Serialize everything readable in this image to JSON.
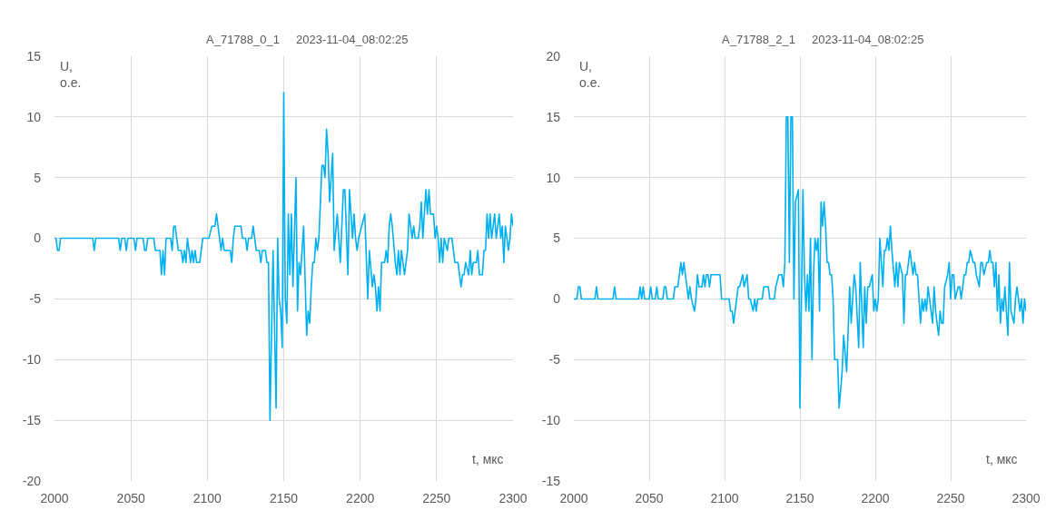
{
  "chart_data": [
    {
      "type": "line",
      "title": "A_71788_0_1     2023-11-04_08:02:25",
      "xlabel": "t, мкс",
      "ylabel": "U,\nо.е.",
      "grid": true,
      "line_style": "solid",
      "xlim": [
        2000,
        2300
      ],
      "xticks": [
        2000,
        2050,
        2100,
        2150,
        2200,
        2250,
        2300
      ],
      "ylim": [
        -20,
        15
      ],
      "yticks": [
        -20,
        -15,
        -10,
        -5,
        0,
        5,
        10,
        15
      ],
      "x": [
        2000,
        2001,
        2002,
        2003,
        2004,
        2025,
        2026,
        2027,
        2042,
        2043,
        2044,
        2046,
        2047,
        2048,
        2052,
        2053,
        2054,
        2058,
        2059,
        2060,
        2061,
        2065,
        2066,
        2069,
        2070,
        2071,
        2072,
        2073,
        2076,
        2077,
        2078,
        2079,
        2080,
        2081,
        2083,
        2084,
        2085,
        2086,
        2087,
        2088,
        2089,
        2090,
        2091,
        2092,
        2093,
        2095,
        2096,
        2097,
        2101,
        2103,
        2105,
        2106,
        2107,
        2108,
        2109,
        2110,
        2111,
        2115,
        2116,
        2117,
        2118,
        2122,
        2123,
        2125,
        2126,
        2127,
        2129,
        2130,
        2131,
        2132,
        2134,
        2135,
        2136,
        2138,
        2139,
        2140,
        2141,
        2143,
        2145,
        2146,
        2147,
        2148,
        2149,
        2150,
        2151,
        2152,
        2153,
        2154,
        2155,
        2156,
        2158,
        2159,
        2160,
        2161,
        2163,
        2165,
        2166,
        2167,
        2168,
        2169,
        2170,
        2171,
        2172,
        2173,
        2175,
        2176,
        2177,
        2178,
        2179,
        2180,
        2182,
        2183,
        2185,
        2186,
        2187,
        2189,
        2190,
        2192,
        2193,
        2195,
        2196,
        2197,
        2198,
        2199,
        2201,
        2203,
        2205,
        2206,
        2208,
        2209,
        2210,
        2211,
        2212,
        2213,
        2214,
        2216,
        2217,
        2218,
        2219,
        2220,
        2221,
        2223,
        2224,
        2225,
        2226,
        2227,
        2229,
        2230,
        2231,
        2232,
        2234,
        2235,
        2236,
        2238,
        2239,
        2240,
        2241,
        2243,
        2244,
        2245,
        2246,
        2248,
        2249,
        2250,
        2251,
        2252,
        2253,
        2254,
        2255,
        2257,
        2258,
        2260,
        2261,
        2262,
        2264,
        2266,
        2267,
        2268,
        2269,
        2271,
        2272,
        2273,
        2274,
        2276,
        2277,
        2278,
        2280,
        2281,
        2282,
        2283,
        2284,
        2285,
        2286,
        2288,
        2289,
        2290,
        2291,
        2292,
        2293,
        2294,
        2295,
        2296,
        2297,
        2298,
        2299,
        2300
      ],
      "series": [
        {
          "color": "#00b0f0",
          "values": [
            0,
            0,
            -1,
            -1,
            0,
            0,
            -1,
            0,
            0,
            -1,
            0,
            0,
            -1,
            0,
            0,
            -1,
            0,
            0,
            -1,
            -1,
            0,
            0,
            -1,
            -1,
            -3,
            -1,
            -3,
            0,
            0,
            -1,
            1,
            1,
            0,
            -1,
            -1,
            -2,
            -1,
            -2,
            0,
            -1,
            -2,
            -1,
            -2,
            -1,
            -2,
            -2,
            -1,
            0,
            0,
            1,
            1,
            2,
            1,
            0,
            -1,
            0,
            -1,
            -1,
            -2,
            0,
            1,
            1,
            0,
            0,
            -1,
            0,
            0,
            1,
            0,
            -1,
            -1,
            -2,
            -1,
            -1,
            -2,
            -2,
            -15,
            -1,
            -14,
            0,
            -5,
            -6,
            -9,
            12,
            -5,
            -7,
            2,
            -3,
            2,
            -4,
            5,
            -6,
            -2,
            -3,
            1,
            -8,
            -6,
            -7,
            -4,
            -2,
            -2,
            0,
            -1,
            0,
            6,
            6,
            5,
            9,
            7,
            3,
            7,
            -1,
            2,
            0,
            -2,
            4,
            4,
            -3,
            4,
            0,
            2,
            0,
            -1,
            0,
            1,
            2,
            -5,
            -1,
            -4,
            -3,
            -4,
            -6,
            -4,
            -6,
            -2,
            -2,
            -1,
            -2,
            1,
            2,
            1,
            -2,
            -3,
            -1,
            -3,
            -1,
            -3,
            -2,
            -1,
            2,
            0,
            1,
            0,
            0,
            1,
            3,
            0,
            4,
            2,
            4,
            2,
            2,
            0,
            1,
            0,
            -2,
            0,
            -2,
            0,
            -1,
            0,
            0,
            -1,
            -2,
            -2,
            -4,
            -3,
            -3,
            -2,
            -3,
            -1,
            -3,
            -2,
            -2,
            -1,
            -3,
            -3,
            -1,
            -1,
            2,
            0,
            2,
            0,
            2,
            0,
            1,
            2,
            0,
            1,
            -2,
            1,
            0,
            -1,
            0,
            2,
            1
          ]
        }
      ]
    },
    {
      "type": "line",
      "title": "A_71788_2_1     2023-11-04_08:02:25",
      "xlabel": "t, мкс",
      "ylabel": "U,\nо.е.",
      "grid": true,
      "line_style": "solid",
      "xlim": [
        2000,
        2300
      ],
      "xticks": [
        2000,
        2050,
        2100,
        2150,
        2200,
        2250,
        2300
      ],
      "ylim": [
        -15,
        20
      ],
      "yticks": [
        -15,
        -10,
        -5,
        0,
        5,
        10,
        15,
        20
      ],
      "x": [
        2000,
        2002,
        2003,
        2004,
        2005,
        2014,
        2015,
        2016,
        2026,
        2027,
        2028,
        2043,
        2044,
        2045,
        2046,
        2047,
        2050,
        2051,
        2052,
        2054,
        2055,
        2056,
        2059,
        2060,
        2061,
        2062,
        2066,
        2067,
        2069,
        2071,
        2072,
        2073,
        2075,
        2076,
        2077,
        2078,
        2080,
        2081,
        2082,
        2083,
        2085,
        2086,
        2087,
        2088,
        2089,
        2090,
        2091,
        2097,
        2098,
        2103,
        2104,
        2105,
        2106,
        2108,
        2109,
        2110,
        2112,
        2113,
        2115,
        2116,
        2117,
        2119,
        2120,
        2121,
        2122,
        2125,
        2126,
        2129,
        2130,
        2133,
        2134,
        2136,
        2138,
        2139,
        2140,
        2141,
        2142,
        2143,
        2144,
        2145,
        2146,
        2147,
        2149,
        2150,
        2152,
        2153,
        2154,
        2155,
        2156,
        2157,
        2158,
        2159,
        2160,
        2161,
        2162,
        2163,
        2164,
        2165,
        2166,
        2167,
        2168,
        2169,
        2170,
        2171,
        2172,
        2173,
        2175,
        2176,
        2178,
        2179,
        2181,
        2183,
        2184,
        2186,
        2187,
        2189,
        2190,
        2192,
        2193,
        2194,
        2195,
        2196,
        2198,
        2199,
        2200,
        2201,
        2202,
        2203,
        2205,
        2206,
        2207,
        2208,
        2209,
        2210,
        2211,
        2213,
        2214,
        2215,
        2216,
        2218,
        2219,
        2220,
        2221,
        2222,
        2223,
        2225,
        2226,
        2227,
        2228,
        2230,
        2231,
        2232,
        2233,
        2234,
        2235,
        2236,
        2238,
        2239,
        2240,
        2242,
        2243,
        2244,
        2245,
        2246,
        2248,
        2249,
        2250,
        2251,
        2252,
        2253,
        2255,
        2256,
        2257,
        2259,
        2260,
        2261,
        2262,
        2263,
        2265,
        2266,
        2267,
        2269,
        2270,
        2271,
        2272,
        2274,
        2275,
        2276,
        2277,
        2278,
        2279,
        2280,
        2281,
        2282,
        2283,
        2284,
        2285,
        2286,
        2288,
        2289,
        2290,
        2292,
        2293,
        2294,
        2295,
        2296,
        2297,
        2298,
        2299,
        2300
      ],
      "series": [
        {
          "color": "#00b0f0",
          "values": [
            0,
            0,
            1,
            1,
            0,
            0,
            1,
            0,
            0,
            1,
            0,
            0,
            1,
            0,
            1,
            0,
            0,
            1,
            0,
            0,
            1,
            0,
            0,
            1,
            1,
            0,
            0,
            1,
            1,
            3,
            2,
            3,
            1,
            0,
            1,
            0,
            -1,
            0,
            2,
            1,
            1,
            2,
            1,
            2,
            2,
            1,
            2,
            2,
            0,
            0,
            -1,
            -1,
            -2,
            0,
            1,
            1,
            2,
            1,
            2,
            0,
            0,
            -1,
            0,
            -1,
            0,
            0,
            1,
            1,
            0,
            0,
            1,
            2,
            2,
            1,
            3,
            15,
            15,
            3,
            15,
            15,
            0,
            8,
            9,
            -9,
            9,
            2,
            -1,
            2,
            -1,
            5,
            -5,
            2,
            5,
            4,
            5,
            -1,
            8,
            6,
            8,
            6,
            3,
            3,
            2,
            2,
            0,
            -5,
            -5,
            -9,
            -6,
            -3,
            -6,
            1,
            -2,
            2,
            1,
            -4,
            3,
            -4,
            1,
            -2,
            1,
            1,
            2,
            -1,
            0,
            -1,
            0,
            5,
            1,
            4,
            4,
            5,
            4,
            6,
            4,
            1,
            3,
            1,
            3,
            2,
            -2,
            2,
            2,
            3,
            4,
            2,
            3,
            2,
            2,
            -2,
            0,
            -1,
            0,
            -1,
            1,
            0,
            -2,
            1,
            -1,
            -3,
            -1,
            -2,
            -2,
            1,
            2,
            3,
            0,
            2,
            2,
            0,
            1,
            1,
            0,
            2,
            2,
            3,
            3,
            4,
            3,
            3,
            2,
            1,
            3,
            3,
            2,
            3,
            3,
            4,
            3,
            3,
            1,
            3,
            -1,
            2,
            -2,
            0,
            -1,
            1,
            -3,
            3,
            -1,
            -2,
            0,
            1,
            0,
            -1,
            0,
            -2,
            0,
            -1
          ]
        }
      ]
    }
  ]
}
